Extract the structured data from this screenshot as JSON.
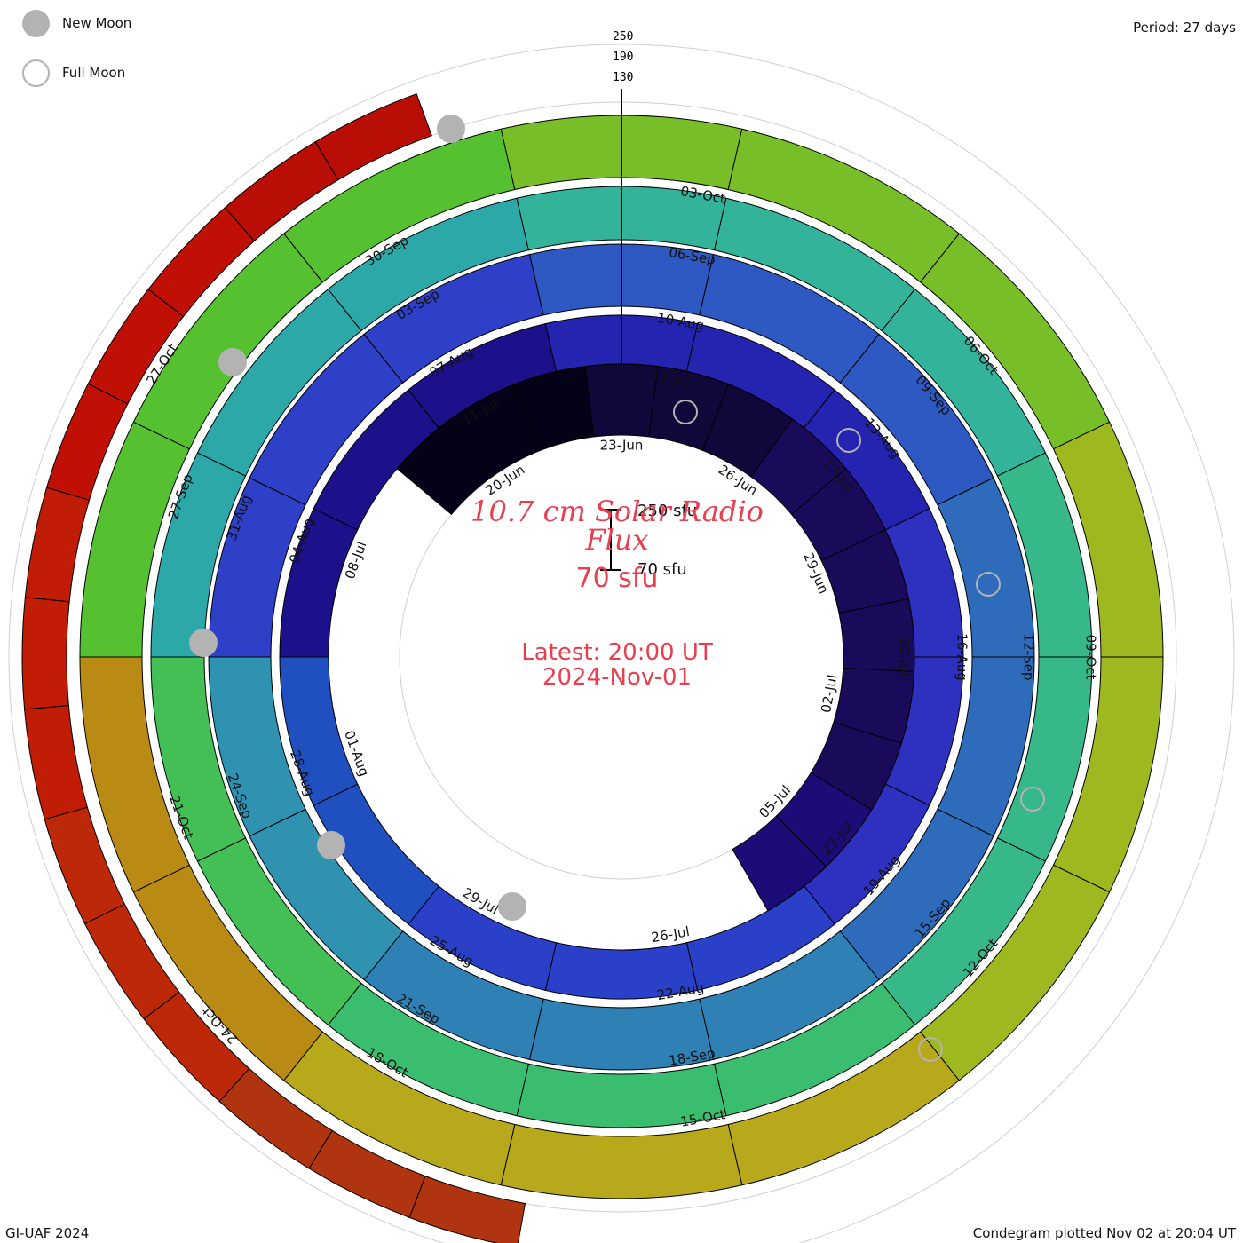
{
  "chart_data": {
    "type": "condegram",
    "title": "10.7 cm Solar Radio Flux",
    "center_value": "70 sfu",
    "latest": "Latest: 20:00 UT",
    "latest_date": "2024-Nov-01",
    "period": "Period: 27 days",
    "credit": "GI-UAF 2024",
    "plotted": "Condegram plotted Nov 02 at 20:04 UT",
    "scale_ticks": [
      "250",
      "190",
      "130"
    ],
    "scale_bar": {
      "top_label": "250 sfu",
      "bottom_label": "70 sfu",
      "min": 70,
      "max": 250
    },
    "legend": [
      {
        "name": "New Moon",
        "symbol": "filled-circle",
        "color": "#b3b3b3"
      },
      {
        "name": "Full Moon",
        "symbol": "open-circle",
        "color": "#b3b3b3"
      }
    ],
    "rings": [
      {
        "ring": 1,
        "color": "#0f0530",
        "date_labels": [
          "20-Jun",
          "23-Jun",
          "26-Jun",
          "29-Jun",
          "02-Jul",
          "05-Jul"
        ]
      },
      {
        "ring": 2,
        "color": "#1e149c",
        "date_labels": [
          "08-Jul",
          "11-Jul",
          "14-Jul",
          "17-Jul",
          "20-Jul",
          "23-Jul",
          "26-Jul",
          "29-Jul",
          "01-Aug"
        ]
      },
      {
        "ring": 3,
        "color": "#3059c0",
        "date_labels": [
          "04-Aug",
          "07-Aug",
          "10-Aug",
          "13-Aug",
          "16-Aug",
          "19-Aug",
          "22-Aug",
          "25-Aug",
          "28-Aug"
        ]
      },
      {
        "ring": 4,
        "color": "#32b49a",
        "date_labels": [
          "31-Aug",
          "03-Sep",
          "06-Sep",
          "09-Sep",
          "12-Sep",
          "15-Sep",
          "18-Sep",
          "21-Sep",
          "24-Sep"
        ]
      },
      {
        "ring": 5,
        "color": "#7dbe28",
        "date_labels": [
          "27-Sep",
          "30-Sep",
          "03-Oct",
          "06-Oct",
          "09-Oct",
          "12-Oct",
          "15-Oct",
          "18-Oct",
          "21-Oct"
        ]
      },
      {
        "ring": 6,
        "color": "#c0280c",
        "date_labels": [
          "24-Oct",
          "27-Oct"
        ]
      }
    ]
  }
}
